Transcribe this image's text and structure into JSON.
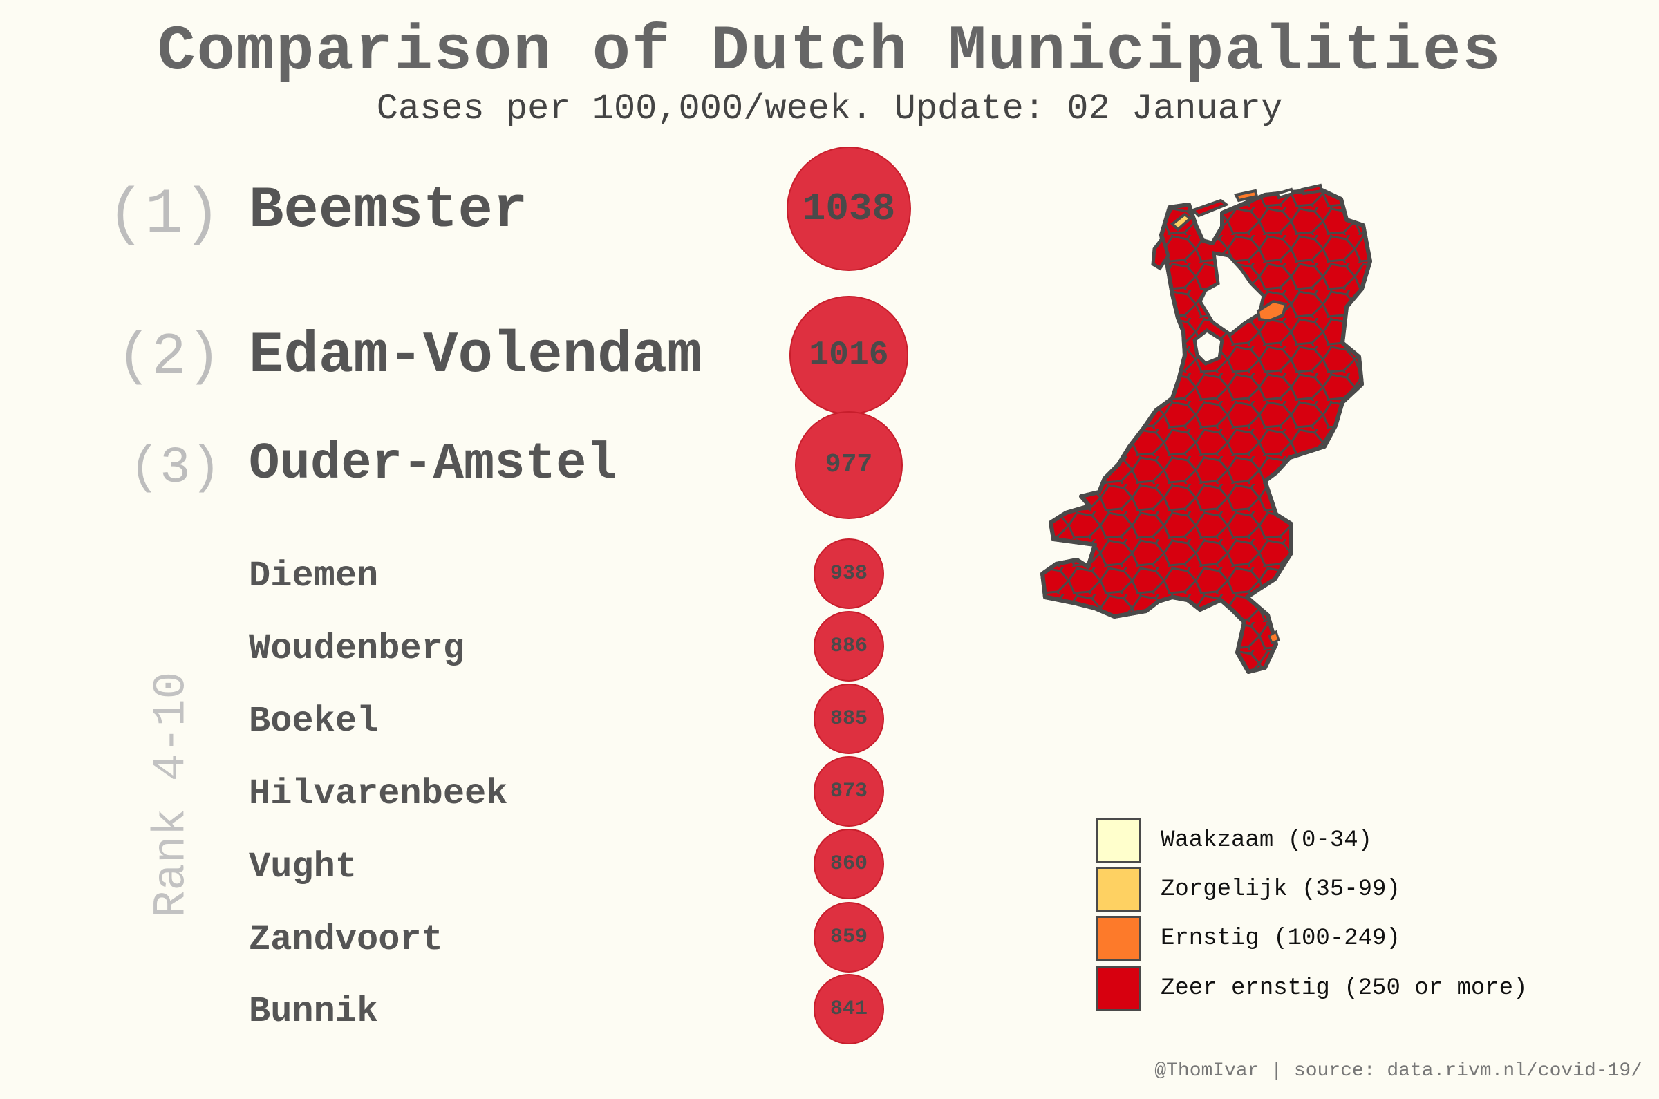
{
  "title": "Comparison of Dutch Municipalities",
  "subtitle": "Cases per 100,000/week. Update: 02 January",
  "rank_group_label": "Rank 4-10",
  "credit": "@ThomIvar | source: data.rivm.nl/covid-19/",
  "top_ranks": [
    {
      "rank_label": "(1)",
      "name": "Beemster"
    },
    {
      "rank_label": "(2)",
      "name": "Edam-Volendam"
    },
    {
      "rank_label": "(3)",
      "name": "Ouder-Amstel"
    }
  ],
  "other_ranks": [
    {
      "name": "Diemen"
    },
    {
      "name": "Woudenberg"
    },
    {
      "name": "Boekel"
    },
    {
      "name": "Hilvarenbeek"
    },
    {
      "name": "Vught"
    },
    {
      "name": "Zandvoort"
    },
    {
      "name": "Bunnik"
    }
  ],
  "legend": [
    {
      "label": "Waakzaam (0-34)",
      "color": "#ffffcc"
    },
    {
      "label": "Zorgelijk (35-99)",
      "color": "#fed162"
    },
    {
      "label": "Ernstig (100-249)",
      "color": "#fd7a2a"
    },
    {
      "label": "Zeer ernstig (250 or more)",
      "color": "#d7000f"
    }
  ],
  "colors": {
    "bubble_fill": "#de3040",
    "map_fill": "#d7000f",
    "map_ernstig": "#fd7a2a",
    "map_border": "#4a4a4a",
    "background": "#fdfcf3"
  },
  "chart_data": {
    "type": "bubble",
    "title": "Comparison of Dutch Municipalities",
    "subtitle": "Cases per 100,000/week. Update: 02 January",
    "categories": [
      "Beemster",
      "Edam-Volendam",
      "Ouder-Amstel",
      "Diemen",
      "Woudenberg",
      "Boekel",
      "Hilvarenbeek",
      "Vught",
      "Zandvoort",
      "Bunnik"
    ],
    "values": [
      1038,
      1016,
      977,
      938,
      886,
      885,
      873,
      860,
      859,
      841
    ],
    "value_labels": [
      "1038",
      "1016",
      "977",
      "938",
      "886",
      "885",
      "873",
      "860",
      "859",
      "841"
    ]
  }
}
